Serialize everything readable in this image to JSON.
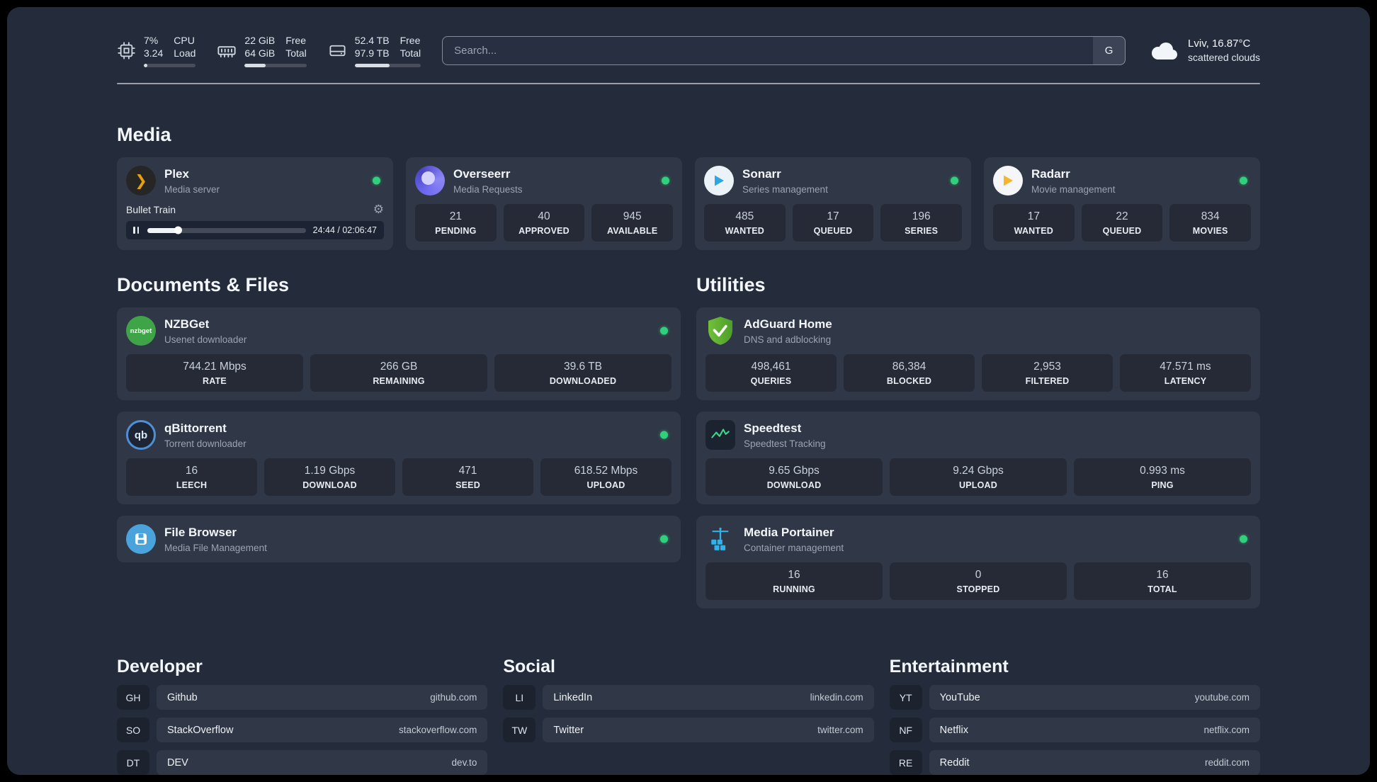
{
  "colors": {
    "panel_bg": "#242c3c",
    "status_online": "#31d07c",
    "plex_amber": "#e5a00d",
    "sonarr_blue": "#2ea6e0",
    "radarr_amber": "#f5b52e",
    "nzbget_green": "#3fa447",
    "qbittorrent_blue": "#4f8fd6",
    "adguard_green": "#5fb32e",
    "speedtest_green": "#3dd68c",
    "filebrowser_blue": "#4ba3dc",
    "portainer_blue": "#2fb3e8"
  },
  "glyphs": {
    "plex": "❯",
    "gear": "⚙",
    "qbittorrent": "qb",
    "nzbget": "nzbget"
  },
  "topbar": {
    "cpu": {
      "value_top": "7%",
      "value_bottom": "3.24",
      "label_top": "CPU",
      "label_bottom": "Load",
      "percent": 7
    },
    "ram": {
      "value_top": "22 GiB",
      "value_bottom": "64 GiB",
      "label_top": "Free",
      "label_bottom": "Total",
      "percent": 34
    },
    "disk": {
      "value_top": "52.4 TB",
      "value_bottom": "97.9 TB",
      "label_top": "Free",
      "label_bottom": "Total",
      "percent": 53
    },
    "search": {
      "placeholder": "Search...",
      "provider_button": "G"
    },
    "weather": {
      "location": "Lviv, 16.87°C",
      "condition": "scattered clouds"
    }
  },
  "sections": {
    "media": {
      "title": "Media",
      "cards": [
        {
          "name": "Plex",
          "subtitle": "Media server",
          "status": "online",
          "player": {
            "track_title": "Bullet Train",
            "time": "24:44 / 02:06:47",
            "progress_percent": 19.5
          }
        },
        {
          "name": "Overseerr",
          "subtitle": "Media Requests",
          "status": "online",
          "stats": [
            {
              "value": "21",
              "label": "PENDING"
            },
            {
              "value": "40",
              "label": "APPROVED"
            },
            {
              "value": "945",
              "label": "AVAILABLE"
            }
          ]
        },
        {
          "name": "Sonarr",
          "subtitle": "Series management",
          "status": "online",
          "stats": [
            {
              "value": "485",
              "label": "WANTED"
            },
            {
              "value": "17",
              "label": "QUEUED"
            },
            {
              "value": "196",
              "label": "SERIES"
            }
          ]
        },
        {
          "name": "Radarr",
          "subtitle": "Movie management",
          "status": "online",
          "stats": [
            {
              "value": "17",
              "label": "WANTED"
            },
            {
              "value": "22",
              "label": "QUEUED"
            },
            {
              "value": "834",
              "label": "MOVIES"
            }
          ]
        }
      ]
    },
    "documents": {
      "title": "Documents & Files",
      "cards": [
        {
          "name": "NZBGet",
          "subtitle": "Usenet downloader",
          "status": "online",
          "stats": [
            {
              "value": "744.21 Mbps",
              "label": "RATE"
            },
            {
              "value": "266 GB",
              "label": "REMAINING"
            },
            {
              "value": "39.6 TB",
              "label": "DOWNLOADED"
            }
          ]
        },
        {
          "name": "qBittorrent",
          "subtitle": "Torrent downloader",
          "status": "online",
          "stats": [
            {
              "value": "16",
              "label": "LEECH"
            },
            {
              "value": "1.19 Gbps",
              "label": "DOWNLOAD"
            },
            {
              "value": "471",
              "label": "SEED"
            },
            {
              "value": "618.52 Mbps",
              "label": "UPLOAD"
            }
          ]
        },
        {
          "name": "File Browser",
          "subtitle": "Media File Management",
          "status": "online"
        }
      ]
    },
    "utilities": {
      "title": "Utilities",
      "cards": [
        {
          "name": "AdGuard Home",
          "subtitle": "DNS and adblocking",
          "stats": [
            {
              "value": "498,461",
              "label": "QUERIES"
            },
            {
              "value": "86,384",
              "label": "BLOCKED"
            },
            {
              "value": "2,953",
              "label": "FILTERED"
            },
            {
              "value": "47.571 ms",
              "label": "LATENCY"
            }
          ]
        },
        {
          "name": "Speedtest",
          "subtitle": "Speedtest Tracking",
          "stats": [
            {
              "value": "9.65 Gbps",
              "label": "DOWNLOAD"
            },
            {
              "value": "9.24 Gbps",
              "label": "UPLOAD"
            },
            {
              "value": "0.993 ms",
              "label": "PING"
            }
          ]
        },
        {
          "name": "Media Portainer",
          "subtitle": "Container management",
          "status": "online",
          "stats": [
            {
              "value": "16",
              "label": "RUNNING"
            },
            {
              "value": "0",
              "label": "STOPPED"
            },
            {
              "value": "16",
              "label": "TOTAL"
            }
          ]
        }
      ]
    }
  },
  "bookmarks": [
    {
      "title": "Developer",
      "items": [
        {
          "abbr": "GH",
          "name": "Github",
          "url": "github.com"
        },
        {
          "abbr": "SO",
          "name": "StackOverflow",
          "url": "stackoverflow.com"
        },
        {
          "abbr": "DT",
          "name": "DEV",
          "url": "dev.to"
        }
      ]
    },
    {
      "title": "Social",
      "items": [
        {
          "abbr": "LI",
          "name": "LinkedIn",
          "url": "linkedin.com"
        },
        {
          "abbr": "TW",
          "name": "Twitter",
          "url": "twitter.com"
        }
      ]
    },
    {
      "title": "Entertainment",
      "items": [
        {
          "abbr": "YT",
          "name": "YouTube",
          "url": "youtube.com"
        },
        {
          "abbr": "NF",
          "name": "Netflix",
          "url": "netflix.com"
        },
        {
          "abbr": "RE",
          "name": "Reddit",
          "url": "reddit.com"
        }
      ]
    }
  ]
}
